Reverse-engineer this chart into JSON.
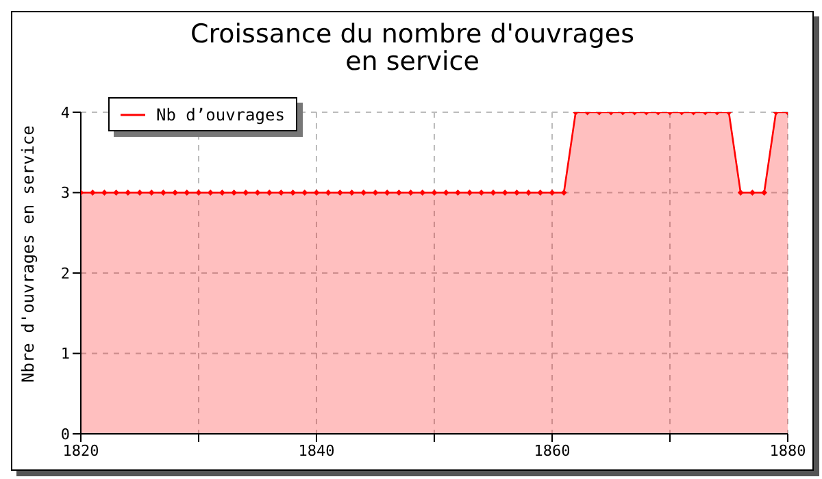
{
  "chart_data": {
    "type": "area",
    "title": "Croissance du nombre d'ouvrages\nen service",
    "ylabel": "Nbre d'ouvrages en service",
    "x": [
      1820,
      1821,
      1822,
      1823,
      1824,
      1825,
      1826,
      1827,
      1828,
      1829,
      1830,
      1831,
      1832,
      1833,
      1834,
      1835,
      1836,
      1837,
      1838,
      1839,
      1840,
      1841,
      1842,
      1843,
      1844,
      1845,
      1846,
      1847,
      1848,
      1849,
      1850,
      1851,
      1852,
      1853,
      1854,
      1855,
      1856,
      1857,
      1858,
      1859,
      1860,
      1861,
      1862,
      1863,
      1864,
      1865,
      1866,
      1867,
      1868,
      1869,
      1870,
      1871,
      1872,
      1873,
      1874,
      1875,
      1876,
      1877,
      1878,
      1879,
      1880
    ],
    "series": [
      {
        "name": "Nb d’ouvrages",
        "color": "#ff0000",
        "values": [
          3,
          3,
          3,
          3,
          3,
          3,
          3,
          3,
          3,
          3,
          3,
          3,
          3,
          3,
          3,
          3,
          3,
          3,
          3,
          3,
          3,
          3,
          3,
          3,
          3,
          3,
          3,
          3,
          3,
          3,
          3,
          3,
          3,
          3,
          3,
          3,
          3,
          3,
          3,
          3,
          3,
          3,
          4,
          4,
          4,
          4,
          4,
          4,
          4,
          4,
          4,
          4,
          4,
          4,
          4,
          4,
          3,
          3,
          3,
          4,
          4
        ]
      }
    ],
    "xlim": [
      1820,
      1880
    ],
    "xticks": [
      1820,
      {
        "value": 1830,
        "label": null
      },
      1840,
      {
        "value": 1850,
        "label": null
      },
      1860,
      {
        "value": 1870,
        "label": null
      },
      1880
    ],
    "ylim": [
      0,
      4
    ],
    "yticks": [
      0,
      1,
      2,
      3,
      4
    ],
    "grid": true,
    "legend": "top left",
    "marker": "diamond",
    "line_style": "solid"
  }
}
